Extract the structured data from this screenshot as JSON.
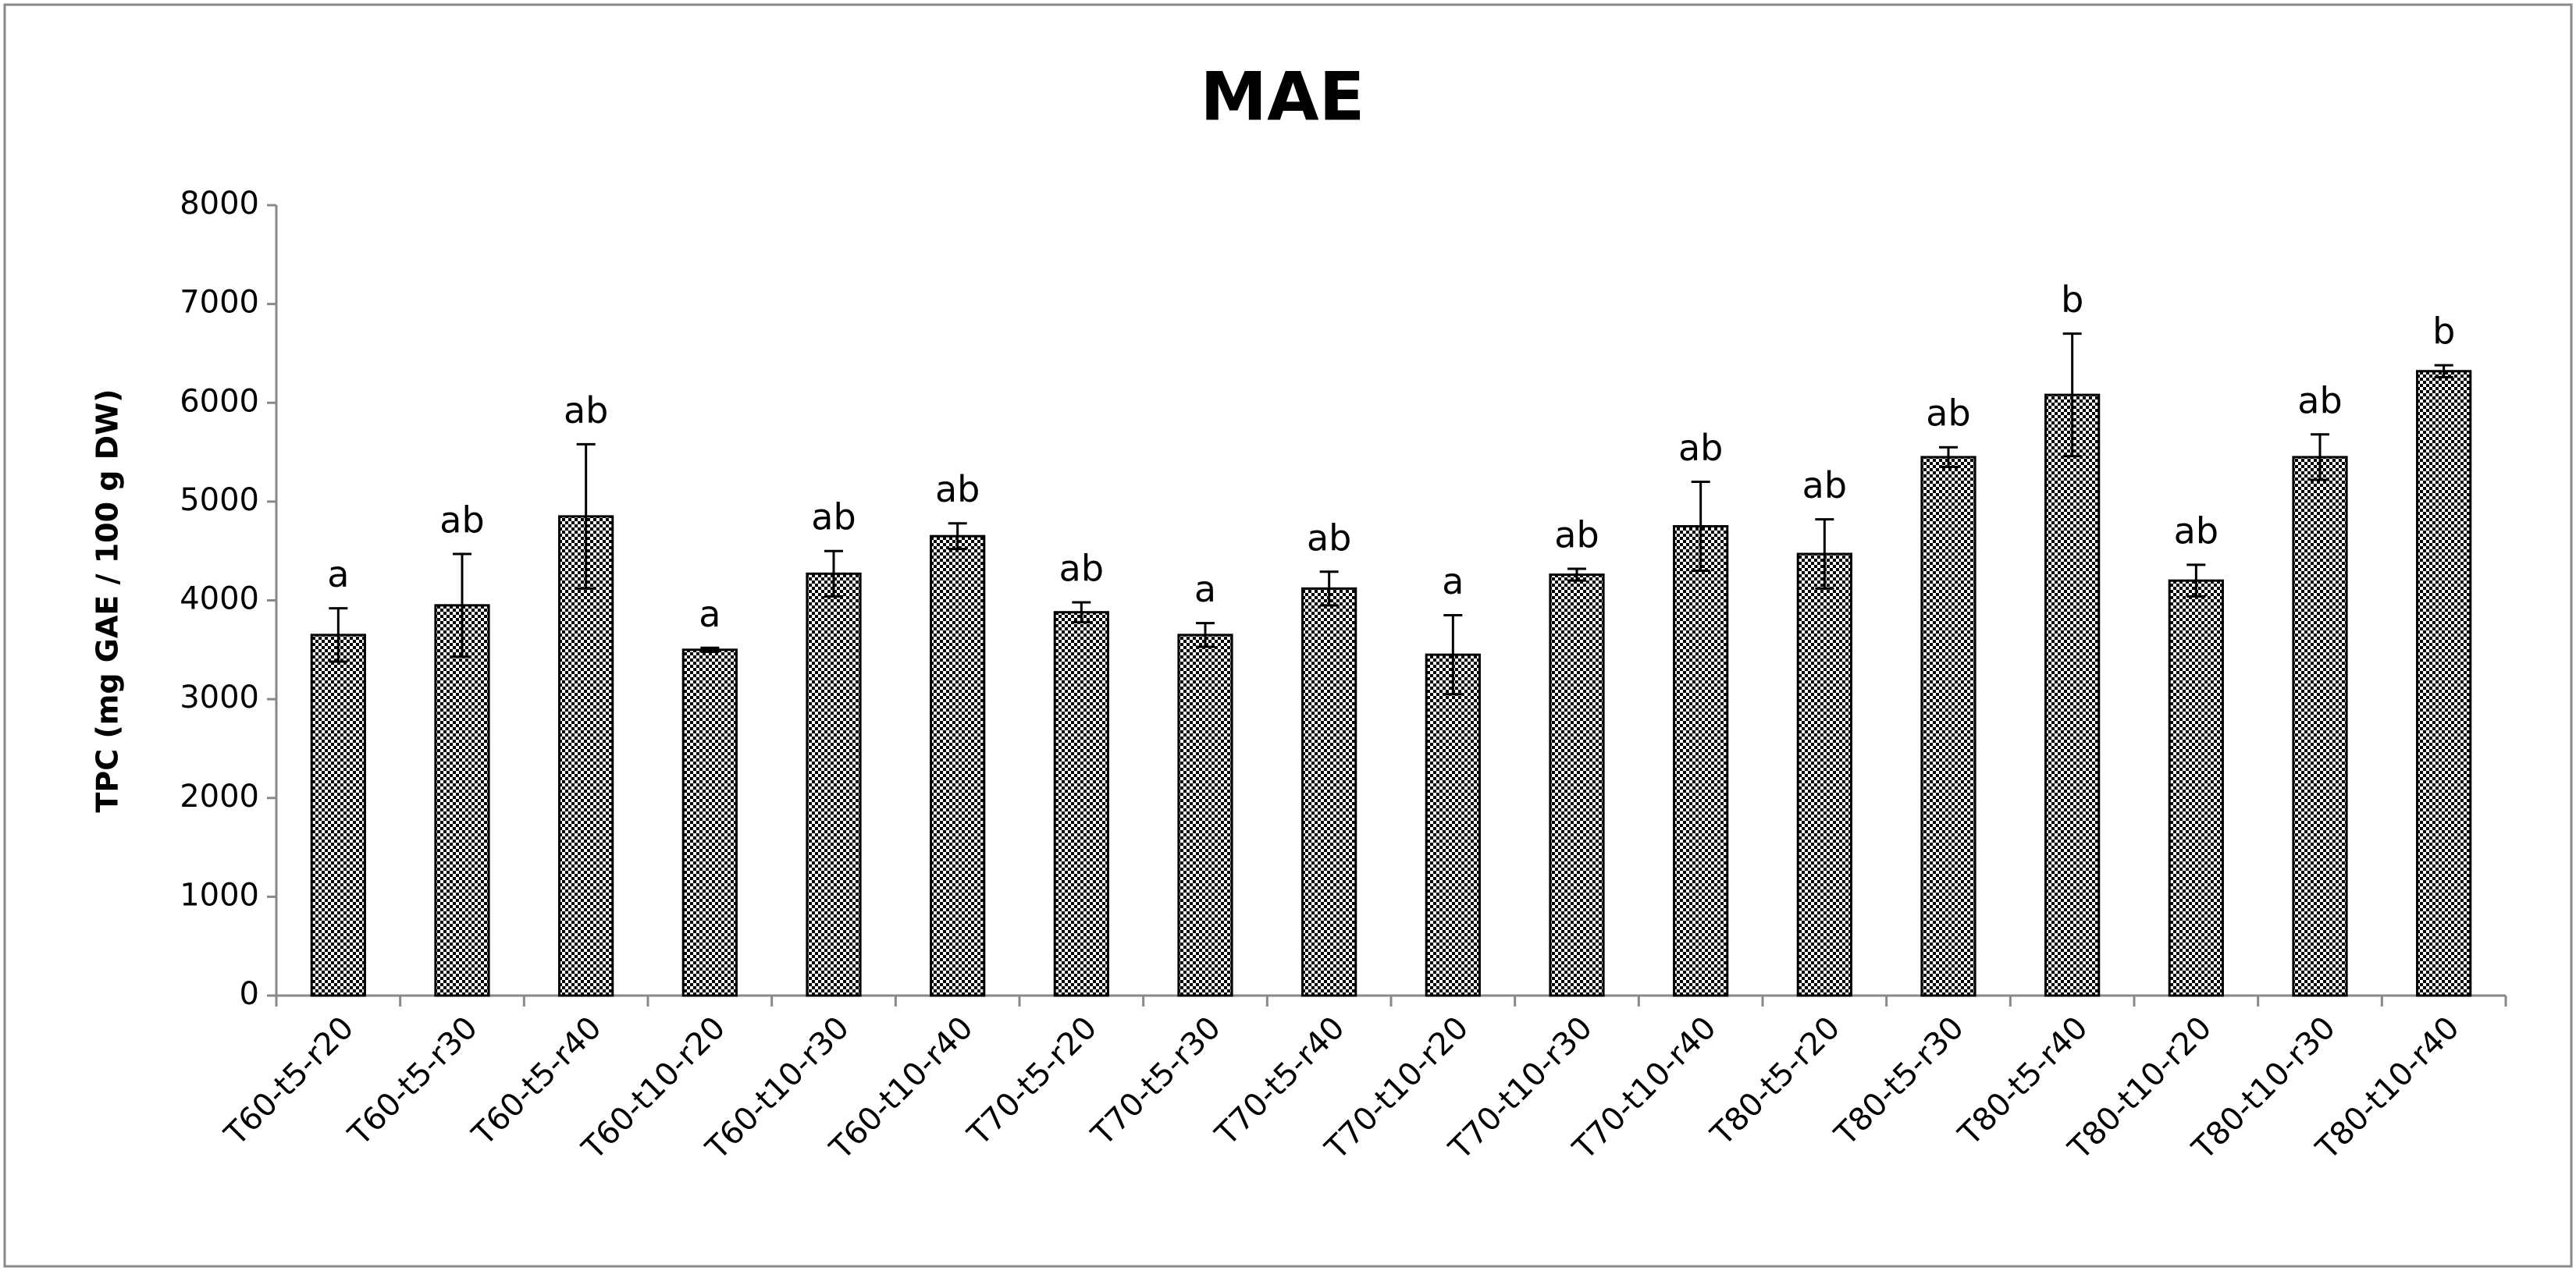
{
  "chart_data": {
    "type": "bar",
    "title": "MAE",
    "y_label": "TPC (mg GAE / 100 g DW)",
    "categories": [
      "T60-t5-r20",
      "T60-t5-r30",
      "T60-t5-r40",
      "T60-t10-r20",
      "T60-t10-r30",
      "T60-t10-r40",
      "T70-t5-r20",
      "T70-t5-r30",
      "T70-t5-r40",
      "T70-t10-r20",
      "T70-t10-r30",
      "T70-t10-r40",
      "T80-t5-r20",
      "T80-t5-r30",
      "T80-t5-r40",
      "T80-t10-r20",
      "T80-t10-r30",
      "T80-t10-r40"
    ],
    "values": [
      3650,
      3950,
      4850,
      3500,
      4270,
      4650,
      3880,
      3650,
      4120,
      3450,
      4260,
      4750,
      4470,
      5450,
      6080,
      4200,
      5450,
      6320
    ],
    "errors": [
      270,
      520,
      730,
      20,
      230,
      130,
      100,
      120,
      170,
      400,
      60,
      450,
      350,
      100,
      620,
      160,
      230,
      60
    ],
    "annotations": [
      "a",
      "ab",
      "ab",
      "a",
      "ab",
      "ab",
      "ab",
      "a",
      "ab",
      "a",
      "ab",
      "ab",
      "ab",
      "ab",
      "b",
      "ab",
      "ab",
      "b"
    ],
    "color": "#000000",
    "ylim": [
      0,
      8000
    ],
    "yticks": [
      0,
      1000,
      2000,
      3000,
      4000,
      5000,
      6000,
      7000,
      8000
    ],
    "grid": false
  }
}
